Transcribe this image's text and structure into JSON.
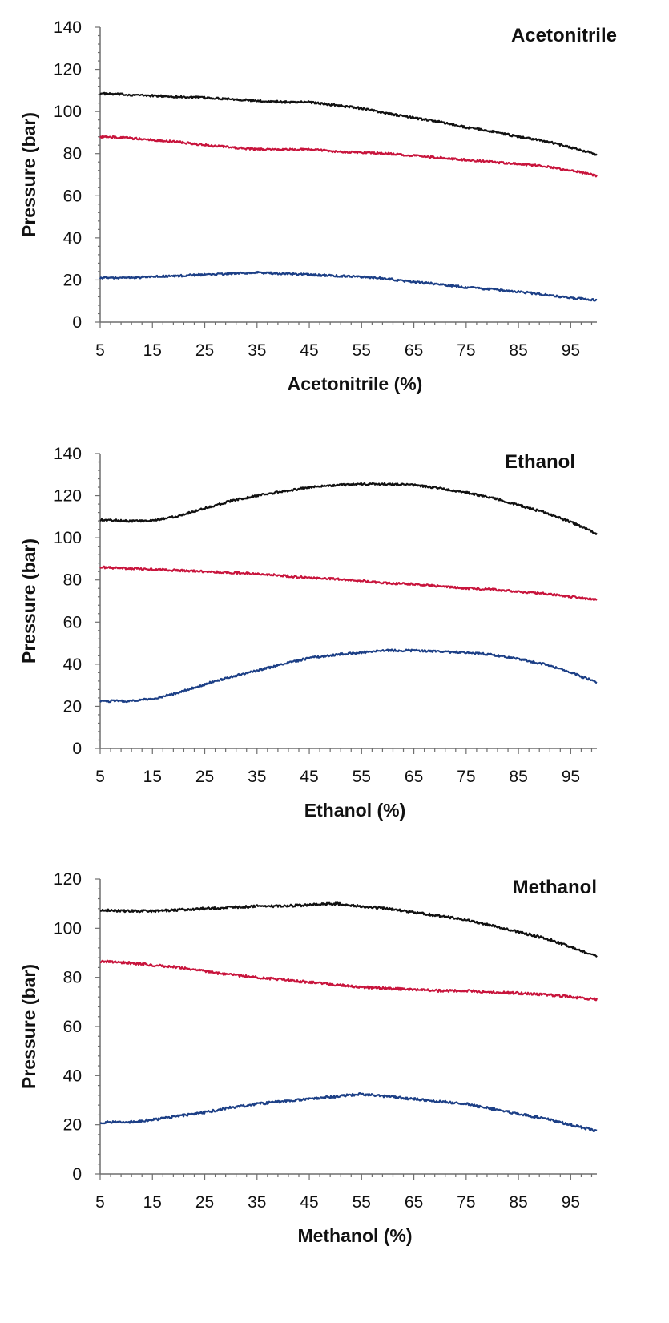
{
  "colors": {
    "series_1": "#111111",
    "series_2": "#c8143c",
    "series_3": "#1c3f86"
  },
  "chart_data": [
    {
      "type": "line",
      "title": "Acetonitrile",
      "xlabel": "Acetonitrile (%)",
      "ylabel": "Pressure (bar)",
      "xlim": [
        5,
        100
      ],
      "ylim": [
        0,
        140
      ],
      "xticks": [
        "5",
        "15",
        "25",
        "35",
        "45",
        "55",
        "65",
        "75",
        "85",
        "95"
      ],
      "yticks": [
        "0",
        "20",
        "40",
        "60",
        "80",
        "100",
        "120",
        "140"
      ],
      "grid": false,
      "legend": "none",
      "series": [
        {
          "color": "series_1",
          "x": [
            5,
            10,
            15,
            20,
            25,
            30,
            35,
            40,
            45,
            50,
            55,
            60,
            65,
            70,
            75,
            80,
            85,
            90,
            95,
            100
          ],
          "y": [
            108.5,
            108,
            107.5,
            107,
            106.5,
            106,
            105,
            104.5,
            104.5,
            103,
            101.5,
            99,
            97,
            95,
            92.5,
            90.5,
            88,
            86,
            83,
            79.5
          ]
        },
        {
          "color": "series_2",
          "x": [
            5,
            10,
            15,
            20,
            25,
            30,
            35,
            40,
            45,
            50,
            55,
            60,
            65,
            70,
            75,
            80,
            85,
            90,
            95,
            100
          ],
          "y": [
            88,
            87.5,
            86.5,
            85.5,
            84,
            83,
            82,
            82,
            82,
            81,
            80.5,
            80,
            79,
            78,
            77,
            76,
            75,
            74,
            72,
            69.5
          ]
        },
        {
          "color": "series_3",
          "x": [
            5,
            10,
            15,
            20,
            25,
            30,
            35,
            40,
            45,
            50,
            55,
            60,
            65,
            70,
            75,
            80,
            85,
            90,
            95,
            100
          ],
          "y": [
            21,
            21,
            21.5,
            22,
            22.5,
            23,
            23.5,
            23,
            22.5,
            22,
            21.5,
            20.5,
            19,
            18,
            16.5,
            15.5,
            14.5,
            13,
            11.5,
            10.5
          ]
        }
      ]
    },
    {
      "type": "line",
      "title": "Ethanol",
      "xlabel": "Ethanol (%)",
      "ylabel": "Pressure (bar)",
      "xlim": [
        5,
        100
      ],
      "ylim": [
        0,
        140
      ],
      "xticks": [
        "5",
        "15",
        "25",
        "35",
        "45",
        "55",
        "65",
        "75",
        "85",
        "95"
      ],
      "yticks": [
        "0",
        "20",
        "40",
        "60",
        "80",
        "100",
        "120",
        "140"
      ],
      "grid": false,
      "legend": "none",
      "series": [
        {
          "color": "series_1",
          "x": [
            5,
            10,
            15,
            20,
            25,
            30,
            35,
            40,
            45,
            50,
            55,
            60,
            65,
            70,
            75,
            80,
            85,
            90,
            95,
            100
          ],
          "y": [
            108.5,
            108,
            108,
            110.5,
            114,
            117.5,
            120,
            122,
            124,
            125,
            125.5,
            125.5,
            125,
            123.5,
            121.5,
            119,
            115.5,
            112,
            107.5,
            102
          ]
        },
        {
          "color": "series_2",
          "x": [
            5,
            10,
            15,
            20,
            25,
            30,
            35,
            40,
            45,
            50,
            55,
            60,
            65,
            70,
            75,
            80,
            85,
            90,
            95,
            100
          ],
          "y": [
            86,
            85.5,
            85,
            84.5,
            84,
            83.5,
            83,
            82,
            81,
            80.5,
            79.5,
            78.5,
            78,
            77,
            76,
            75.5,
            74.5,
            73.5,
            72,
            70.5
          ]
        },
        {
          "color": "series_3",
          "x": [
            5,
            10,
            15,
            20,
            25,
            30,
            35,
            40,
            45,
            50,
            55,
            60,
            65,
            70,
            75,
            80,
            85,
            90,
            95,
            100
          ],
          "y": [
            22.5,
            22.5,
            23.5,
            26.5,
            30.5,
            34,
            37,
            40,
            43,
            44.5,
            45.5,
            46.5,
            46.5,
            46,
            45.5,
            44.5,
            42.5,
            40,
            36,
            31.5
          ]
        }
      ]
    },
    {
      "type": "line",
      "title": "Methanol",
      "xlabel": "Methanol (%)",
      "ylabel": "Pressure (bar)",
      "xlim": [
        5,
        100
      ],
      "ylim": [
        0,
        120
      ],
      "xticks": [
        "5",
        "15",
        "25",
        "35",
        "45",
        "55",
        "65",
        "75",
        "85",
        "95"
      ],
      "yticks": [
        "0",
        "20",
        "40",
        "60",
        "80",
        "100",
        "120"
      ],
      "grid": false,
      "legend": "none",
      "series": [
        {
          "color": "series_1",
          "x": [
            5,
            10,
            15,
            20,
            25,
            30,
            35,
            40,
            45,
            50,
            55,
            60,
            65,
            70,
            75,
            80,
            85,
            90,
            95,
            100
          ],
          "y": [
            107.5,
            107,
            107,
            107.5,
            108,
            108.5,
            109,
            109,
            109.5,
            110,
            109,
            108,
            106.5,
            105,
            103.5,
            101,
            98.5,
            96,
            92.5,
            88.5
          ]
        },
        {
          "color": "series_2",
          "x": [
            5,
            10,
            15,
            20,
            25,
            30,
            35,
            40,
            45,
            50,
            55,
            60,
            65,
            70,
            75,
            80,
            85,
            90,
            95,
            100
          ],
          "y": [
            86.5,
            86,
            85,
            84,
            82.5,
            81,
            80,
            79,
            78,
            77,
            76,
            75.5,
            75,
            74.5,
            74.5,
            74,
            73.5,
            73,
            72,
            71
          ]
        },
        {
          "color": "series_3",
          "x": [
            5,
            10,
            15,
            20,
            25,
            30,
            35,
            40,
            45,
            50,
            55,
            60,
            65,
            70,
            75,
            80,
            85,
            90,
            95,
            100
          ],
          "y": [
            21,
            21,
            22,
            23.5,
            25,
            27,
            28.5,
            29.5,
            30.5,
            31.5,
            32.5,
            31.5,
            30.5,
            29.5,
            28.5,
            26.5,
            24.5,
            22.5,
            20,
            17.5
          ]
        }
      ]
    }
  ]
}
